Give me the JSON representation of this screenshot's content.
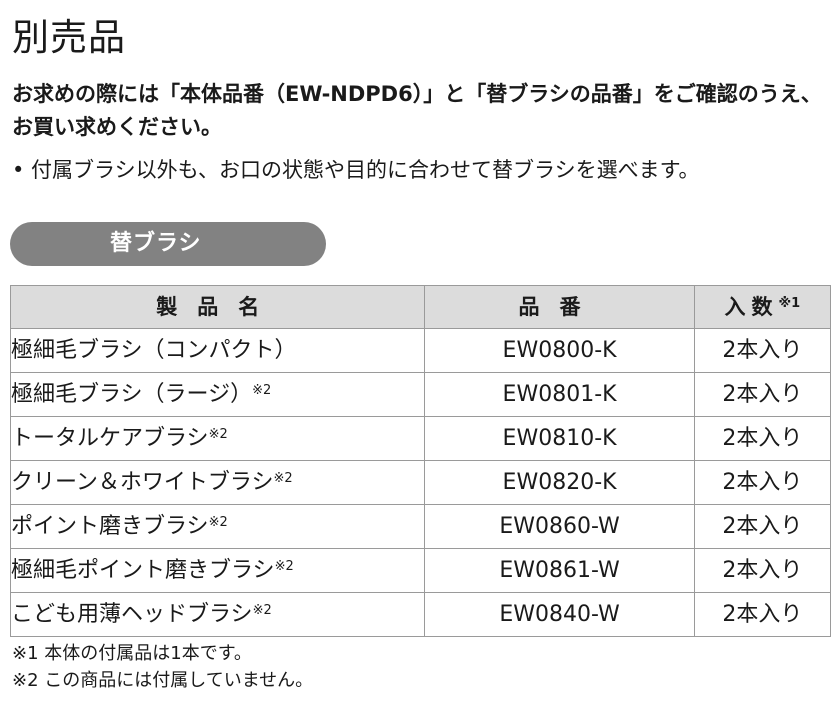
{
  "title": "別売品",
  "intro": "お求めの際には「本体品番（EW-NDPD6）」と「替ブラシの品番」をご確認のうえ、お買い求めください。",
  "note": "• 付属ブラシ以外も、お口の状態や目的に合わせて替ブラシを選べます。",
  "section_label": "替ブラシ",
  "table": {
    "headers": {
      "name": "製品名",
      "code": "品番",
      "qty": "入数",
      "qty_mark": "※1"
    },
    "rows": [
      {
        "name": "極細毛ブラシ（コンパクト）",
        "mark": "",
        "code": "EW0800-K",
        "qty": "2本入り"
      },
      {
        "name": "極細毛ブラシ（ラージ）",
        "mark": "※2",
        "code": "EW0801-K",
        "qty": "2本入り"
      },
      {
        "name": "トータルケアブラシ",
        "mark": "※2",
        "code": "EW0810-K",
        "qty": "2本入り"
      },
      {
        "name": "クリーン＆ホワイトブラシ",
        "mark": "※2",
        "code": "EW0820-K",
        "qty": "2本入り"
      },
      {
        "name": "ポイント磨きブラシ",
        "mark": "※2",
        "code": "EW0860-W",
        "qty": "2本入り"
      },
      {
        "name": "極細毛ポイント磨きブラシ",
        "mark": "※2",
        "code": "EW0861-W",
        "qty": "2本入り"
      },
      {
        "name": "こども用薄ヘッドブラシ",
        "mark": "※2",
        "code": "EW0840-W",
        "qty": "2本入り"
      }
    ]
  },
  "footnotes": [
    "※1 本体の付属品は1本です。",
    "※2 この商品には付属していません。"
  ],
  "colors": {
    "pill_bg": "#828282",
    "header_bg": "#dcdcdc",
    "border": "#9a9a9a"
  }
}
